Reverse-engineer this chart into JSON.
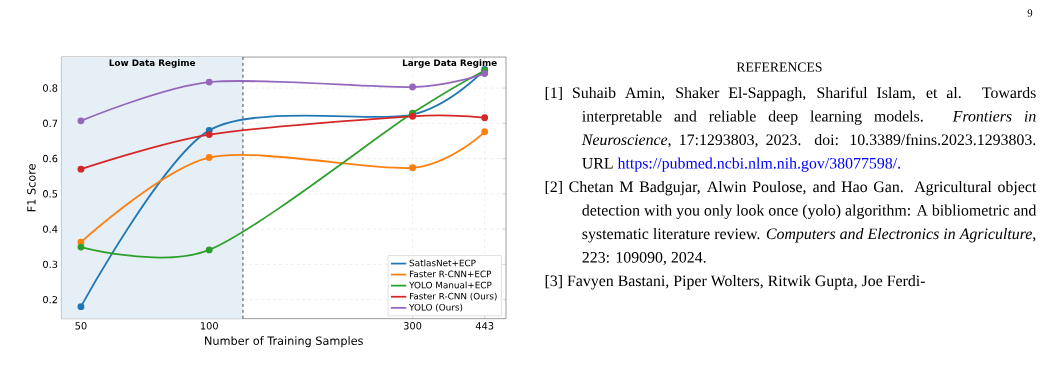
{
  "chart_data": {
    "type": "line",
    "xlabel": "Number of Training Samples",
    "ylabel": "F1 Score",
    "x": [
      50,
      100,
      300,
      443
    ],
    "series": [
      {
        "name": "SatlasNet+ECP",
        "color": "#1f77b4",
        "values": [
          0.18,
          0.68,
          0.725,
          0.853
        ]
      },
      {
        "name": "Faster R-CNN+ECP",
        "color": "#ff7f0e",
        "values": [
          0.363,
          0.603,
          0.574,
          0.676
        ]
      },
      {
        "name": "YOLO Manual+ECP",
        "color": "#2ca02c",
        "values": [
          0.349,
          0.341,
          0.729,
          0.85
        ]
      },
      {
        "name": "Faster R-CNN (Ours)",
        "color": "#d62728",
        "values": [
          0.57,
          0.668,
          0.72,
          0.716
        ]
      },
      {
        "name": "YOLO (Ours)",
        "color": "#9467bd",
        "values": [
          0.707,
          0.817,
          0.803,
          0.841
        ]
      }
    ],
    "xlim": [
      45,
      497
    ],
    "ylim": [
      0.146,
      0.888
    ],
    "xticks": [
      50,
      100,
      300,
      443
    ],
    "yticks": [
      0.2,
      0.3,
      0.4,
      0.5,
      0.6,
      0.7,
      0.8
    ],
    "log": "x",
    "grid": true,
    "legend": "bottom right",
    "marker": "circle",
    "bands": [
      {
        "axis": "x",
        "from": 45,
        "to": 120,
        "label": "Low Data Regime",
        "color": "#e6eef6"
      }
    ],
    "ref_lines": [
      {
        "axis": "x",
        "value": 120,
        "color": "#444444",
        "line_style": "dashed"
      }
    ],
    "annotations": [
      "Large Data Regime",
      "9",
      "REFERENCES",
      "[1] Suhaib Amin, Shaker El-Sappagh, Shariful Islam, et al. Towards interpretable and reliable deep learning models. *Frontiers in Neuroscience*, 17:1293803, 2023. doi: 10.3389/fnins.2023.1293803. URL",
      "https://pubmed.ncbi.nlm.nih.gov/38077598/.",
      "[2] Chetan M Badgujar, Alwin Poulose, and Hao Gan. Agricultural object detection with you only look once (yolo) algorithm: A bibliometric and systematic literature review. *Computers and Electronics in Agriculture*, 223: 109090, 2024.",
      "[3] Favyen Bastani, Piper Wolters, Ritwik Gupta, Joe Ferdi-"
    ]
  }
}
